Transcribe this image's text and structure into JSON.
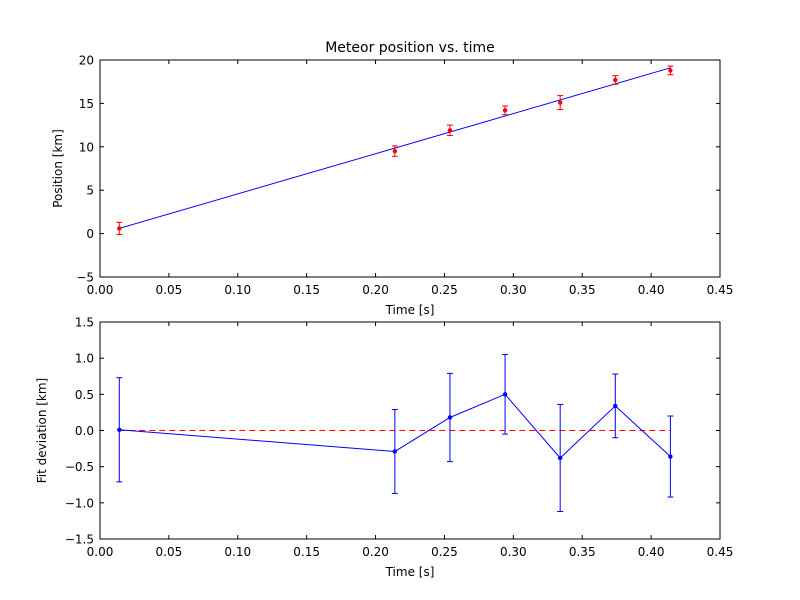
{
  "chart_data": [
    {
      "type": "scatter",
      "title": "Meteor position vs. time",
      "xlabel": "Time [s]",
      "ylabel": "Position [km]",
      "xlim": [
        0.0,
        0.45
      ],
      "ylim": [
        -5,
        20
      ],
      "xticks": [
        0.0,
        0.05,
        0.1,
        0.15,
        0.2,
        0.25,
        0.3,
        0.35,
        0.4,
        0.45
      ],
      "xtick_labels": [
        "0.00",
        "0.05",
        "0.10",
        "0.15",
        "0.20",
        "0.25",
        "0.30",
        "0.35",
        "0.40",
        "0.45"
      ],
      "yticks": [
        -5,
        0,
        5,
        10,
        15,
        20
      ],
      "ytick_labels": [
        "−5",
        "0",
        "5",
        "10",
        "15",
        "20"
      ],
      "grid": false,
      "points": {
        "x": [
          0.014,
          0.214,
          0.254,
          0.294,
          0.334,
          0.374,
          0.414
        ],
        "y": [
          0.6,
          9.5,
          11.9,
          14.2,
          15.1,
          17.7,
          18.8
        ],
        "yerr": [
          0.7,
          0.6,
          0.6,
          0.5,
          0.8,
          0.5,
          0.5
        ],
        "color": "#ff0000",
        "errcolor": "#ff0000"
      },
      "fit_line": {
        "x": [
          0.014,
          0.414
        ],
        "y": [
          0.6,
          19.1
        ],
        "color": "#0000ff"
      }
    },
    {
      "type": "line",
      "title": "",
      "xlabel": "Time [s]",
      "ylabel": "Fit deviation [km]",
      "xlim": [
        0.0,
        0.45
      ],
      "ylim": [
        -1.5,
        1.5
      ],
      "xticks": [
        0.0,
        0.05,
        0.1,
        0.15,
        0.2,
        0.25,
        0.3,
        0.35,
        0.4,
        0.45
      ],
      "xtick_labels": [
        "0.00",
        "0.05",
        "0.10",
        "0.15",
        "0.20",
        "0.25",
        "0.30",
        "0.35",
        "0.40",
        "0.45"
      ],
      "yticks": [
        -1.5,
        -1.0,
        -0.5,
        0.0,
        0.5,
        1.0,
        1.5
      ],
      "ytick_labels": [
        "−1.5",
        "−1.0",
        "−0.5",
        "0.0",
        "0.5",
        "1.0",
        "1.5"
      ],
      "grid": false,
      "series": [
        {
          "x": [
            0.014,
            0.214,
            0.254,
            0.294,
            0.334,
            0.374,
            0.414
          ],
          "y": [
            0.01,
            -0.29,
            0.18,
            0.5,
            -0.38,
            0.34,
            -0.36
          ],
          "yerr": [
            0.72,
            0.58,
            0.61,
            0.55,
            0.74,
            0.44,
            0.56
          ],
          "color": "#0000ff"
        }
      ],
      "zero_line": {
        "y": 0.0,
        "color": "#ff0000",
        "dashed": true
      }
    }
  ]
}
